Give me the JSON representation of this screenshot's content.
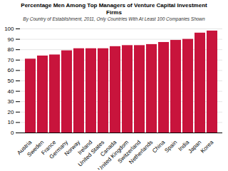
{
  "chart_data": {
    "type": "bar",
    "title": "Percentage Men Among Top Managers of Venture Capital Investment\nFirms",
    "subtitle": "By Country of Establishment, 2011, Only Countries With At Least 100 Companies Shown",
    "categories": [
      "Austria",
      "Sweden",
      "France",
      "Germany",
      "Norway",
      "Ireland",
      "United States",
      "Canada",
      "United Kingdom",
      "Switzerland",
      "Netherlands",
      "China",
      "Spain",
      "India",
      "Japan",
      "Korea"
    ],
    "values": [
      71,
      74,
      75,
      79,
      81,
      81,
      81,
      83,
      84,
      84,
      85,
      87,
      89,
      90,
      96,
      98
    ],
    "color": "#C8143C",
    "ylim": [
      0,
      100
    ],
    "yticks": [
      0,
      10,
      20,
      30,
      40,
      50,
      60,
      70,
      80,
      90,
      100
    ],
    "grid": true
  }
}
